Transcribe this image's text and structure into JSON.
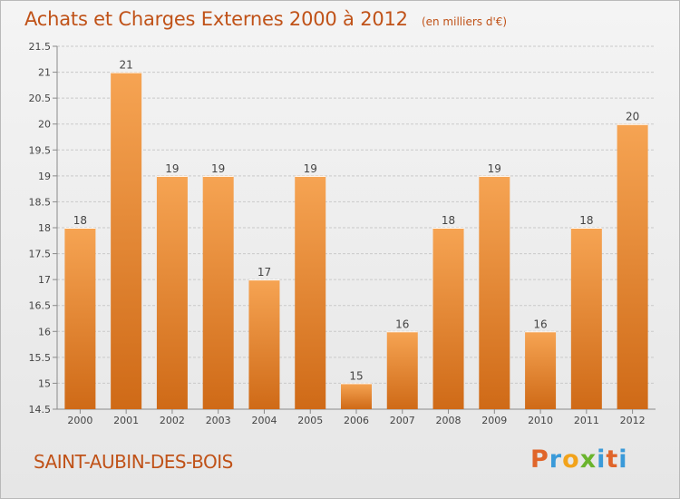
{
  "header": {
    "title": "Achats et Charges Externes 2000 à 2012",
    "unit": "(en milliers d'€)"
  },
  "footer": {
    "commune": "SAINT-AUBIN-DES-BOIS",
    "brand": "Proxiti",
    "brand_colors": [
      "#e0652a",
      "#3a9ad9",
      "#f2a31b",
      "#6ab42d",
      "#3a9ad9",
      "#e0652a",
      "#3a9ad9"
    ]
  },
  "colors": {
    "bar_light": "#f6a453",
    "bar_dark": "#cf6a17",
    "text_accent": "#c05218",
    "grid": "#c9c9c9"
  },
  "chart_data": {
    "type": "bar",
    "title": "Achats et Charges Externes 2000 à 2012",
    "categories": [
      "2000",
      "2001",
      "2002",
      "2003",
      "2004",
      "2005",
      "2006",
      "2007",
      "2008",
      "2009",
      "2010",
      "2011",
      "2012"
    ],
    "values": [
      18,
      21,
      19,
      19,
      17,
      19,
      15,
      16,
      18,
      19,
      16,
      18,
      20
    ],
    "ylim": [
      14.5,
      21.5
    ],
    "yticks": [
      "14.5",
      "15",
      "15.5",
      "16",
      "16.5",
      "17",
      "17.5",
      "18",
      "18.5",
      "19",
      "19.5",
      "20",
      "20.5",
      "21",
      "21.5"
    ],
    "grid": true,
    "legend": "none"
  }
}
